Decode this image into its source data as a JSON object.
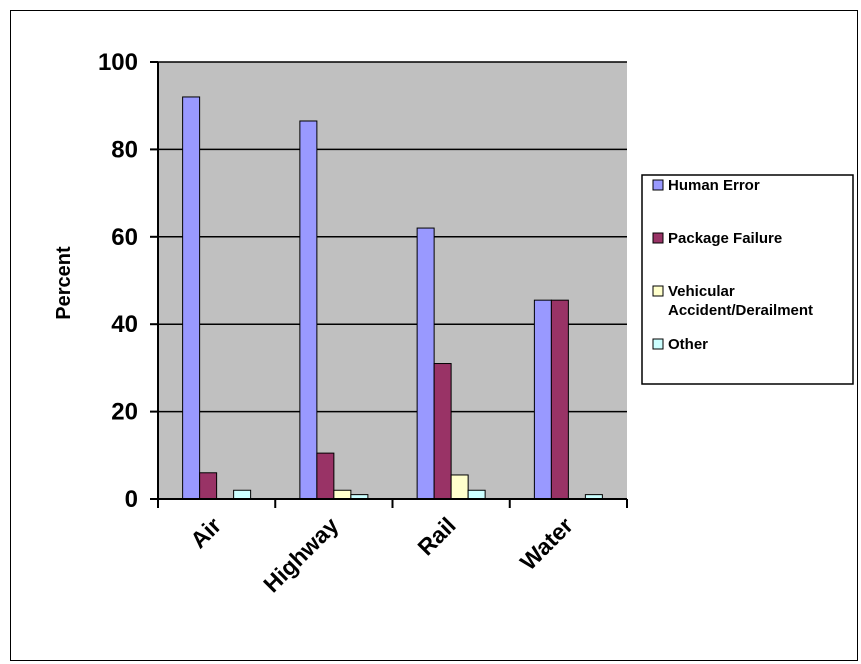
{
  "chart_data": {
    "type": "bar",
    "categories": [
      "Air",
      "Highway",
      "Rail",
      "Water"
    ],
    "series": [
      {
        "name": "Human Error",
        "color": "#9999ff",
        "values": [
          92,
          86.5,
          62,
          45.5
        ]
      },
      {
        "name": "Package Failure",
        "color": "#993366",
        "values": [
          6,
          10.5,
          31,
          45.5
        ]
      },
      {
        "name": "Vehicular Accident/Derailment",
        "color": "#ffffcc",
        "values": [
          0,
          2,
          5.5,
          0
        ]
      },
      {
        "name": "Other",
        "color": "#ccffff",
        "values": [
          2,
          1,
          2,
          1
        ]
      }
    ],
    "ylabel": "Percent",
    "ylim": [
      0,
      100
    ],
    "yticks": [
      0,
      20,
      40,
      60,
      80,
      100
    ],
    "grid": true,
    "plot_background": "#c0c0c0",
    "legend_position": "right"
  },
  "legend": {
    "items": [
      {
        "lines": [
          "Human Error"
        ]
      },
      {
        "lines": [
          "Package Failure"
        ]
      },
      {
        "lines": [
          "Vehicular",
          "Accident/Derailment"
        ]
      },
      {
        "lines": [
          "Other"
        ]
      }
    ]
  }
}
